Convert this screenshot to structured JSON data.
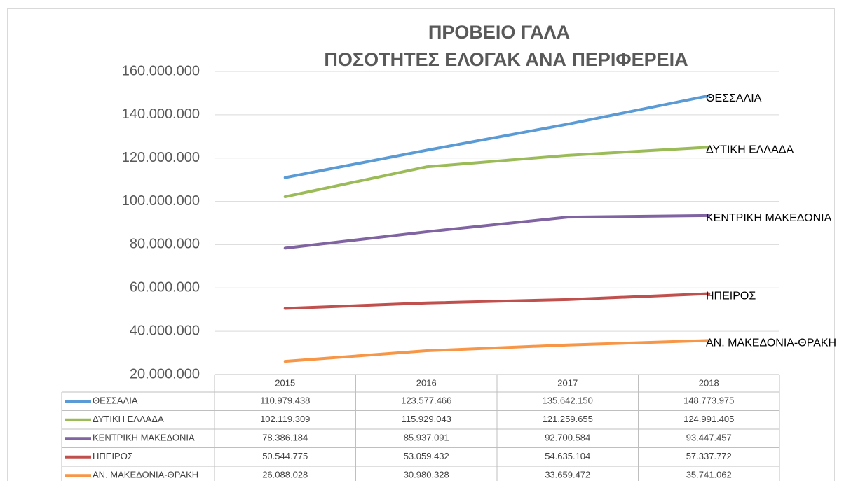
{
  "chart_data": {
    "type": "line",
    "title": "ΠΡΟΒΕΙΟ ΓΑΛΑ",
    "subtitle": "ΠΟΣΟΤΗΤΕΣ ΕΛΟΓΑΚ ΑΝΑ ΠΕΡΙΦΕΡΕΙΑ",
    "categories": [
      "2015",
      "2016",
      "2017",
      "2018"
    ],
    "series": [
      {
        "name": "ΘΕΣΣΑΛΙΑ",
        "color": "#5b9bd5",
        "values": [
          110979438,
          123577466,
          135642150,
          148773975
        ],
        "value_labels": [
          "110.979.438",
          "123.577.466",
          "135.642.150",
          "148.773.975"
        ]
      },
      {
        "name": "ΔΥΤΙΚΗ ΕΛΛΑΔΑ",
        "color": "#9bbb59",
        "values": [
          102119309,
          115929043,
          121259655,
          124991405
        ],
        "value_labels": [
          "102.119.309",
          "115.929.043",
          "121.259.655",
          "124.991.405"
        ]
      },
      {
        "name": "ΚΕΝΤΡΙΚΗ ΜΑΚΕΔΟΝΙΑ",
        "color": "#8064a2",
        "values": [
          78386184,
          85937091,
          92700584,
          93447457
        ],
        "value_labels": [
          "78.386.184",
          "85.937.091",
          "92.700.584",
          "93.447.457"
        ]
      },
      {
        "name": "ΗΠΕΙΡΟΣ",
        "color": "#c0504d",
        "values": [
          50544775,
          53059432,
          54635104,
          57337772
        ],
        "value_labels": [
          "50.544.775",
          "53.059.432",
          "54.635.104",
          "57.337.772"
        ]
      },
      {
        "name": "ΑΝ. ΜΑΚΕΔΟΝΙΑ-ΘΡΑΚΗ",
        "color": "#f79646",
        "values": [
          26088028,
          30980328,
          33659472,
          35741062
        ],
        "value_labels": [
          "26.088.028",
          "30.980.328",
          "33.659.472",
          "35.741.062"
        ]
      }
    ],
    "ylim": [
      20000000,
      160000000
    ],
    "yticks": [
      {
        "value": 20000000,
        "label": "20.000.000"
      },
      {
        "value": 40000000,
        "label": "40.000.000"
      },
      {
        "value": 60000000,
        "label": "60.000.000"
      },
      {
        "value": 80000000,
        "label": "80.000.000"
      },
      {
        "value": 100000000,
        "label": "100.000.000"
      },
      {
        "value": 120000000,
        "label": "120.000.000"
      },
      {
        "value": 140000000,
        "label": "140.000.000"
      },
      {
        "value": 160000000,
        "label": "160.000.000"
      }
    ],
    "grid": true
  }
}
